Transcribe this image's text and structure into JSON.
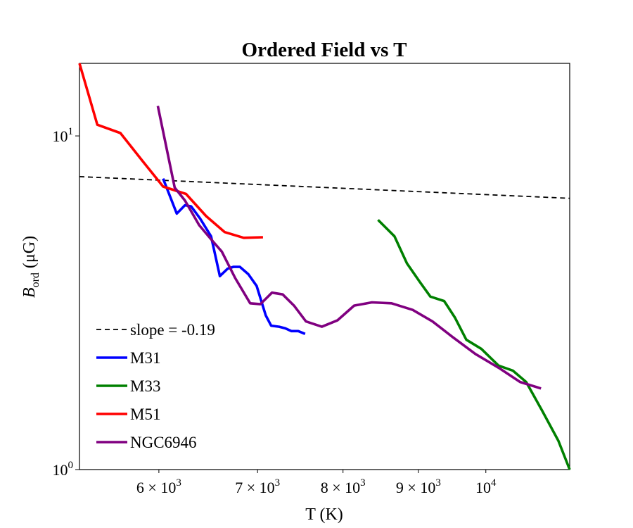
{
  "chart_data": {
    "type": "line",
    "title": "Ordered Field vs T",
    "xlabel": "T (K)",
    "ylabel": {
      "main": "B",
      "sub": "ord",
      "tail": " (μG)"
    },
    "xscale": "log",
    "yscale": "log",
    "xlim": [
      5300,
      11400
    ],
    "ylim": [
      1.0,
      16.5
    ],
    "grid": false,
    "legend_placement": "lower-left",
    "x_ticks": [
      {
        "value": 6000,
        "mantissa": "6",
        "base": "10",
        "exp": "3"
      },
      {
        "value": 7000,
        "mantissa": "7",
        "base": "10",
        "exp": "3"
      },
      {
        "value": 8000,
        "mantissa": "8",
        "base": "10",
        "exp": "3"
      },
      {
        "value": 9000,
        "mantissa": "9",
        "base": "10",
        "exp": "3"
      },
      {
        "value": 10000,
        "mantissa": "",
        "base": "10",
        "exp": "4"
      }
    ],
    "y_ticks": [
      {
        "value": 1,
        "base": "10",
        "exp": "0"
      },
      {
        "value": 10,
        "base": "10",
        "exp": "1"
      }
    ],
    "series": [
      {
        "name": "slope = -0.19",
        "color": "#000000",
        "dashed": true,
        "x": [
          5300,
          11400
        ],
        "y": [
          7.55,
          6.5
        ]
      },
      {
        "name": "M31",
        "color": "#0000ff",
        "x": [
          6040,
          6170,
          6250,
          6310,
          6400,
          6510,
          6600,
          6680,
          6740,
          6810,
          6900,
          6990,
          7090,
          7150,
          7240,
          7310,
          7380,
          7460,
          7540
        ],
        "y": [
          7.45,
          5.85,
          6.2,
          6.15,
          5.65,
          5.0,
          3.8,
          4.0,
          4.05,
          4.05,
          3.85,
          3.55,
          2.9,
          2.7,
          2.68,
          2.65,
          2.6,
          2.6,
          2.55
        ]
      },
      {
        "name": "M33",
        "color": "#008000",
        "x": [
          8450,
          8670,
          8840,
          9020,
          9170,
          9370,
          9530,
          9700,
          9930,
          10200,
          10430,
          10650,
          10920,
          11200,
          11400
        ],
        "y": [
          5.6,
          5.0,
          4.15,
          3.65,
          3.3,
          3.2,
          2.85,
          2.45,
          2.3,
          2.05,
          1.98,
          1.83,
          1.5,
          1.22,
          1.0
        ]
      },
      {
        "name": "M51",
        "color": "#ff0000",
        "x": [
          5300,
          5450,
          5650,
          5850,
          6040,
          6260,
          6460,
          6650,
          6850,
          7060
        ],
        "y": [
          16.5,
          10.8,
          10.2,
          8.4,
          7.05,
          6.7,
          5.75,
          5.15,
          4.95,
          4.97
        ]
      },
      {
        "name": "NGC6946",
        "color": "#800080",
        "x": [
          5990,
          6150,
          6250,
          6390,
          6510,
          6620,
          6760,
          6920,
          7030,
          7160,
          7280,
          7410,
          7550,
          7740,
          7930,
          8140,
          8370,
          8630,
          8920,
          9200,
          9490,
          9840,
          10200,
          10550,
          10900
        ],
        "y": [
          12.3,
          7.0,
          6.4,
          5.4,
          4.9,
          4.5,
          3.75,
          3.15,
          3.13,
          3.39,
          3.35,
          3.1,
          2.78,
          2.68,
          2.8,
          3.1,
          3.17,
          3.15,
          3.01,
          2.78,
          2.5,
          2.22,
          2.02,
          1.83,
          1.75
        ]
      }
    ]
  }
}
